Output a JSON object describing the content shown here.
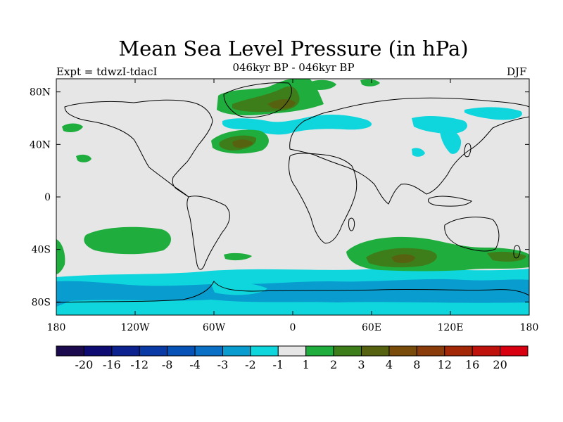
{
  "title": "Mean Sea Level Pressure (in hPa)",
  "experiment": "Expt = tdwzI-tdacI",
  "subtitle": "046kyr BP - 046kyr BP",
  "season": "DJF",
  "map": {
    "lon_range": [
      -180,
      180
    ],
    "lat_range": [
      -90,
      90
    ],
    "x_ticks": [
      {
        "value": -180,
        "label": "180"
      },
      {
        "value": -120,
        "label": "120W"
      },
      {
        "value": -60,
        "label": "60W"
      },
      {
        "value": 0,
        "label": "0"
      },
      {
        "value": 60,
        "label": "60E"
      },
      {
        "value": 120,
        "label": "120E"
      },
      {
        "value": 180,
        "label": "180"
      }
    ],
    "y_ticks": [
      {
        "value": 80,
        "label": "80N"
      },
      {
        "value": 40,
        "label": "40N"
      },
      {
        "value": 0,
        "label": "0"
      },
      {
        "value": -40,
        "label": "40S"
      },
      {
        "value": -80,
        "label": "80S"
      }
    ],
    "neutral_color": "#e6e6e6"
  },
  "colorbar": {
    "colors": [
      "#1c0a4e",
      "#0e0b72",
      "#0b228f",
      "#0a3aa5",
      "#0752b6",
      "#0a70c6",
      "#099ccf",
      "#0ed6dc",
      "#e6e6e6",
      "#1fae3e",
      "#3e7e1a",
      "#56620f",
      "#7a4c0c",
      "#8a3c0a",
      "#a22808",
      "#c0120c",
      "#d80010"
    ],
    "labels": [
      "-20",
      "-16",
      "-12",
      "-8",
      "-4",
      "-3",
      "-2",
      "-1",
      "1",
      "2",
      "3",
      "4",
      "8",
      "12",
      "16",
      "20"
    ]
  }
}
